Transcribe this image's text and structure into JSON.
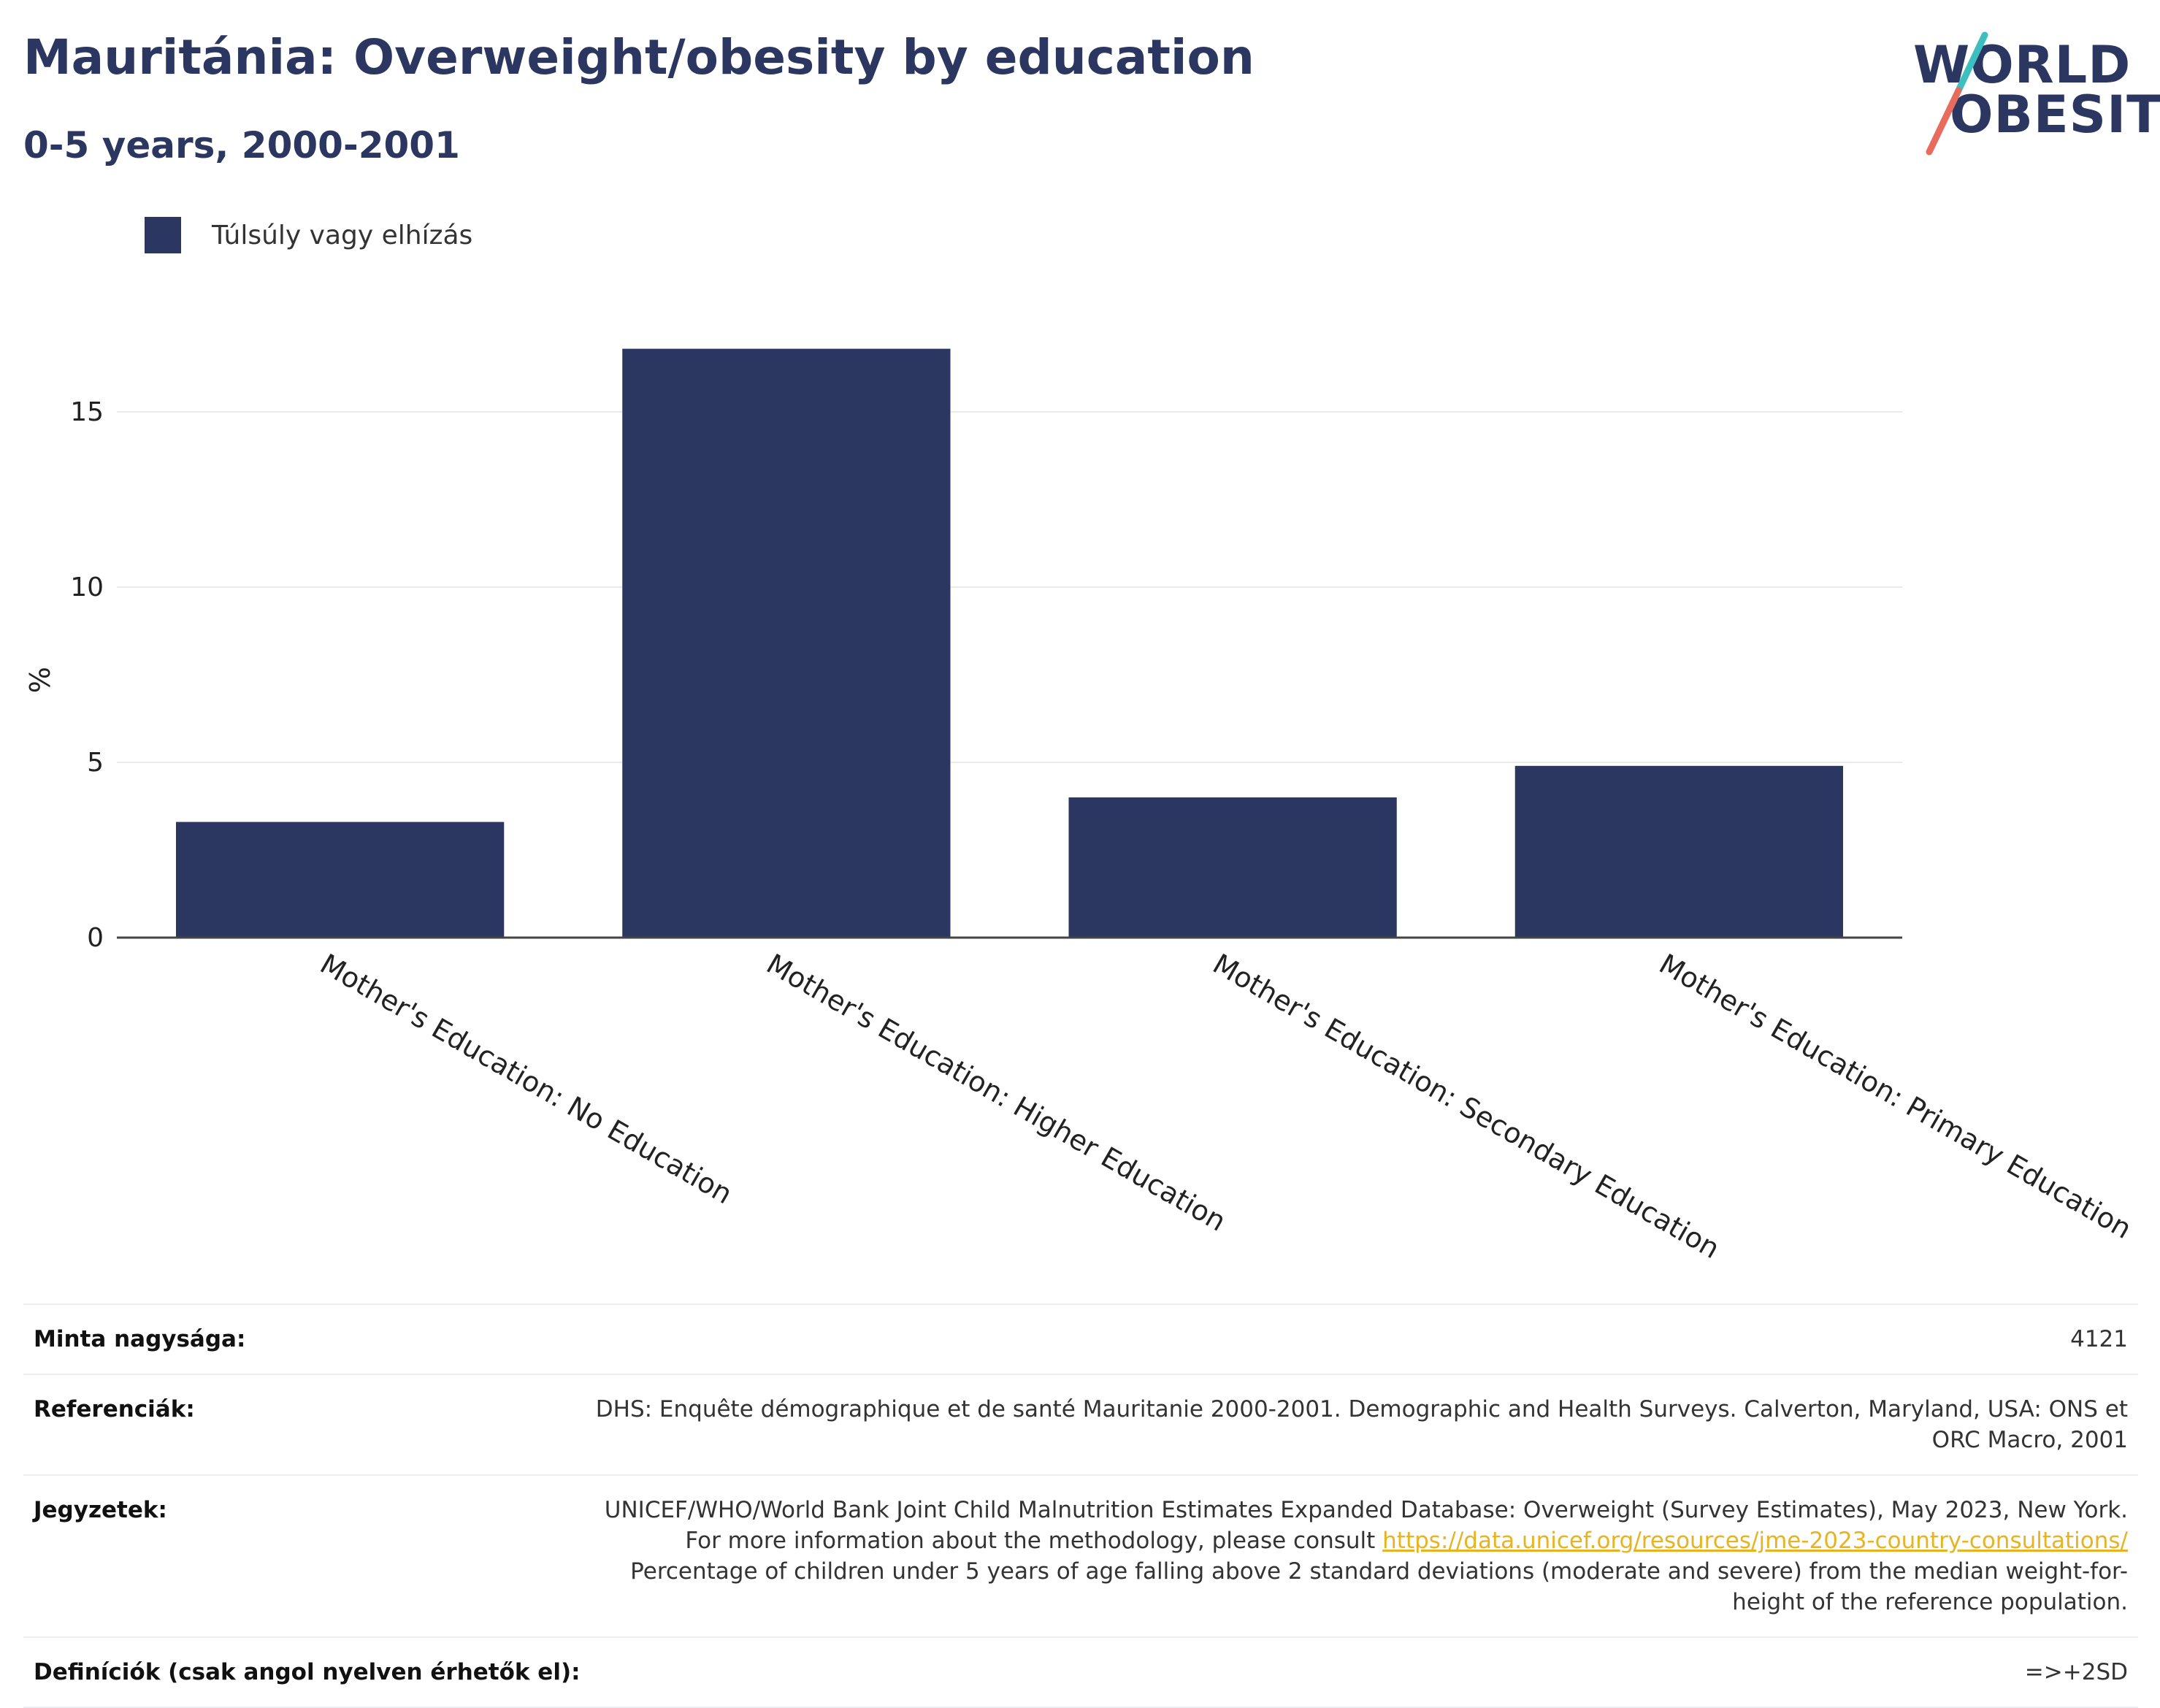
{
  "header": {
    "title": "Mauritánia: Overweight/obesity by education",
    "subtitle": "0-5 years, 2000-2001"
  },
  "logo": {
    "line1": "WORLD",
    "line2": "OBESITY"
  },
  "colors": {
    "bar": "#2b3761",
    "title": "#2b3761",
    "logo_slash_top": "#3cbfbe",
    "logo_slash_bottom": "#e86c5d",
    "link": "#e8b321"
  },
  "chart_data": {
    "type": "bar",
    "title": "",
    "xlabel": "",
    "ylabel": "%",
    "ylim": [
      0,
      17.5
    ],
    "yticks": [
      0,
      5,
      10,
      15
    ],
    "grid": true,
    "legend": "top-left",
    "categories": [
      "Mother's Education: No Education",
      "Mother's Education: Higher Education",
      "Mother's Education: Secondary Education",
      "Mother's Education: Primary Education"
    ],
    "series": [
      {
        "name": "Túlsúly vagy elhízás",
        "values": [
          3.3,
          16.8,
          4.0,
          4.9
        ]
      }
    ]
  },
  "info": {
    "sample_label": "Minta nagysága:",
    "sample_value": "4121",
    "refs_label": "Referenciák:",
    "refs_value": "DHS: Enquête démographique et de santé Mauritanie 2000-2001. Demographic and Health Surveys. Calverton, Maryland, USA: ONS et ORC Macro, 2001",
    "notes_label": "Jegyzetek:",
    "notes_value_1": "UNICEF/WHO/World Bank Joint Child Malnutrition Estimates Expanded Database: Overweight (Survey Estimates), May 2023, New York. For more information about the methodology, please consult",
    "notes_link": "https://data.unicef.org/resources/jme-2023-country-consultations/",
    "notes_value_2": "Percentage of children under 5 years of age falling above 2 standard deviations (moderate and severe) from the median weight-for-height of the reference population.",
    "defs_label": "Definíciók (csak angol nyelven érhetők el):",
    "defs_value": "=>+2SD"
  }
}
